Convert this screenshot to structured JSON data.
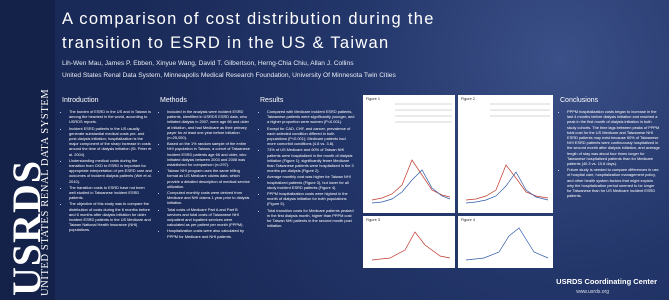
{
  "logo": {
    "acronym": "USRDS",
    "name": "UNITED STATES RENAL DATA SYSTEM"
  },
  "header": {
    "title": [
      "A comparison of cost distribution during the",
      "transition to ESRD in the US & Taiwan"
    ],
    "authors": "Lih-Wen Mau, James P. Ebben, Xinyue Wang, David T. Gilbertson, Herng-Chia Chiu, Allan J. Collins",
    "affiliation": "United States Renal Data System, Minneapolis Medical Research Foundation, University Of Minnesota Twin Cities"
  },
  "sections": [
    {
      "heading": "Introduction",
      "bullets": [
        "The burden of ESRD in the US and in Taiwan is among the heaviest in the world, according to USRDS reports.",
        "Incident ESRD patients in the US usually generate substantial medical costs pre- and post-dialysis initiation; hospitalization is the major component of the sharp increase in costs around the time of dialysis initiation (St. Peter et al. 2004).",
        "Understanding medical costs during the transition from CKD to ESRD is important for appropriate interpretation of pre-ESRD care and outcomes of incident dialysis patients (Wei et al. 2010).",
        "The transition costs to ESRD have not been well studied in Taiwanese incident ESRD patients.",
        "The objective of this study was to compare the distribution of costs during the 6 months before and 6 months after dialysis initiation for older incident ESRD patients in the US Medicare and Taiwan National Health Insurance (NHI) populations."
      ]
    },
    {
      "heading": "Methods",
      "bullets": [
        "Included in the analysis were incident ESRD patients, identified in USRDS ESRD data, who initiated dialysis in 2007, were age 66 and older at initiation, and had Medicare as their primary payer for at least one year before initiation (n=25,050).",
        "Based on the 1% random sample of the entire NHI population in Taiwan, a cohort of Taiwanese incident ESRD patients age 66 and older, who initiated dialysis between 2003 and 2008 was established for comparison (n=297).",
        "Taiwan NHI program uses the same billing format as US Medicare claims data, which provide a detailed description of medical service utilization.",
        "Computed monthly costs were derived from Medicare and NHI claims 1 year prior to dialysis initiation.",
        "Total costs of Medicare Part A and Part B services and total costs of Taiwanese NHI outpatient and inpatient services were calculated as per patient per month (PPPM).",
        "Hospitalization costs were also calculated by PPPM for Medicare and NHI patients."
      ]
    },
    {
      "heading": "Results",
      "bullets": [
        "Compared with Medicare incident ESRD patients, Taiwanese patients were significantly younger, and a higher proportion were women (P<0.001).",
        "Except for CAD, CHF, and cancer, prevalence of each selected condition differed in both populations (P<0.001); Medicare patients had more comorbid conditions (4.8 vs. 3.8).",
        "73% of US Medicare and 60% of Taiwan NHI patients were hospitalized in the month of dialysis initiation (Figure 1); significantly fewer Medicare than Taiwanese patients were hospitalized in the 3 months pre-dialysis (Figure 2).",
        "Average monthly cost was higher for Taiwan NHI hospitalized patients (Figure 3), but lower for all study incident ESRD patients (Figure 4).",
        "PPPM hospitalization costs were highest in the month of dialysis initiation for both populations (Figure 5).",
        "Total transition costs for Medicare patients peaked in the first dialysis month, higher than PPPM cost for Taiwan NHI patients in the second month post initiation."
      ]
    },
    {
      "heading": "Conclusions",
      "bullets": [
        "PPPM hospitalization costs began to increase in the last 4 months before dialysis initiation and reached a peak in the first month of dialysis initiation in both study cohorts. The time lags between peaks of PPPM total cost for the US Medicare and Taiwanese NHI ESRD patients may exist because 60% of Taiwanese NHI ESRD patients were continuously hospitalized in the second month after dialysis initiation, and average length of stay was about four times longer for Taiwanese hospitalized patients than for Medicare patients (40.3 vs. 10.8 days).",
        "Future study is needed to compare differences in use of hospital care, hospitalization management policy, and other health system factors that might explain why the hospitalization period seemed to be longer for Taiwanese than for US Medicare incident ESRD patients."
      ]
    }
  ],
  "figures": [
    "Figure 1",
    "Figure 2",
    "Figure 3",
    "Figure 4"
  ],
  "footer": {
    "center": "USRDS Coordinating Center",
    "url": "www.usrds.org"
  }
}
